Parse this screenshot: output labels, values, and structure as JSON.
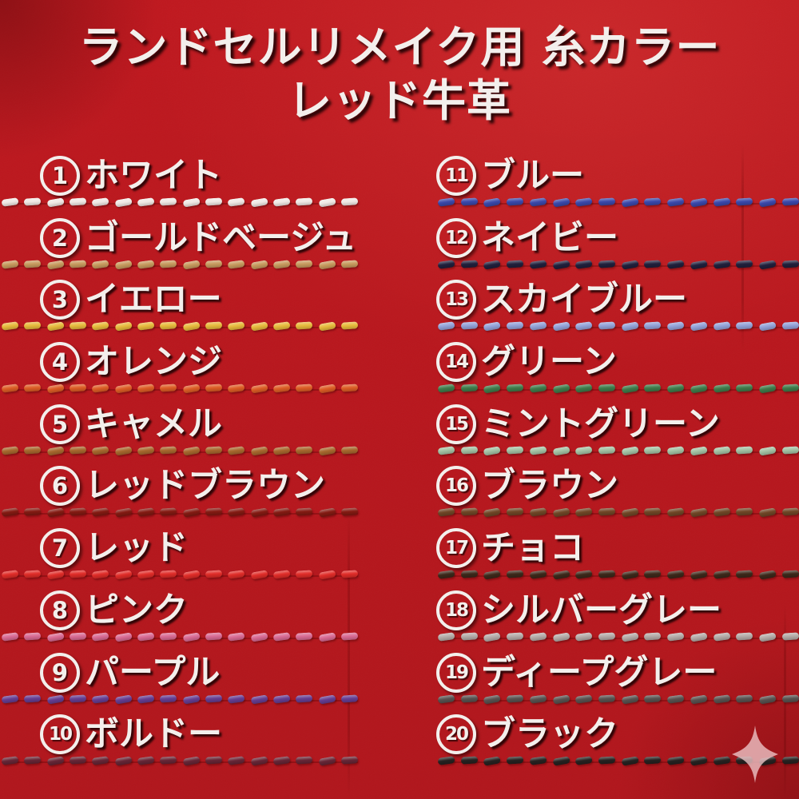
{
  "title": {
    "line1": "ランドセルリメイク用 糸カラー",
    "line2": "レッド牛革"
  },
  "leather": {
    "name": "red-cowhide-background",
    "base_color": "#c5181f",
    "text_color": "#f3efec"
  },
  "threads": {
    "left": [
      {
        "number": "1",
        "label": "ホワイト",
        "color": "#efe8e4"
      },
      {
        "number": "2",
        "label": "ゴールドベージュ",
        "color": "#c79a5e"
      },
      {
        "number": "3",
        "label": "イエロー",
        "color": "#e7ba3c"
      },
      {
        "number": "4",
        "label": "オレンジ",
        "color": "#dd5d25"
      },
      {
        "number": "5",
        "label": "キャメル",
        "color": "#a7682e"
      },
      {
        "number": "6",
        "label": "レッドブラウン",
        "color": "#831a12"
      },
      {
        "number": "7",
        "label": "レッド",
        "color": "#e02c28"
      },
      {
        "number": "8",
        "label": "ピンク",
        "color": "#d96b94"
      },
      {
        "number": "9",
        "label": "パープル",
        "color": "#653e92"
      },
      {
        "number": "10",
        "label": "ボルドー",
        "color": "#662636"
      }
    ],
    "right": [
      {
        "number": "11",
        "label": "ブルー",
        "color": "#3a48aa"
      },
      {
        "number": "12",
        "label": "ネイビー",
        "color": "#20203c"
      },
      {
        "number": "13",
        "label": "スカイブルー",
        "color": "#93a2d8"
      },
      {
        "number": "14",
        "label": "グリーン",
        "color": "#3e7b4a"
      },
      {
        "number": "15",
        "label": "ミントグリーン",
        "color": "#a3c2a4"
      },
      {
        "number": "16",
        "label": "ブラウン",
        "color": "#6f4626"
      },
      {
        "number": "17",
        "label": "チョコ",
        "color": "#3c281a"
      },
      {
        "number": "18",
        "label": "シルバーグレー",
        "color": "#b4aba8"
      },
      {
        "number": "19",
        "label": "ディープグレー",
        "color": "#585250"
      },
      {
        "number": "20",
        "label": "ブラック",
        "color": "#262221"
      }
    ]
  },
  "stitch": {
    "dashes_per_line": 16
  },
  "sparkle": {
    "name": "four-point-sparkle",
    "color": "#ecc3c6"
  }
}
